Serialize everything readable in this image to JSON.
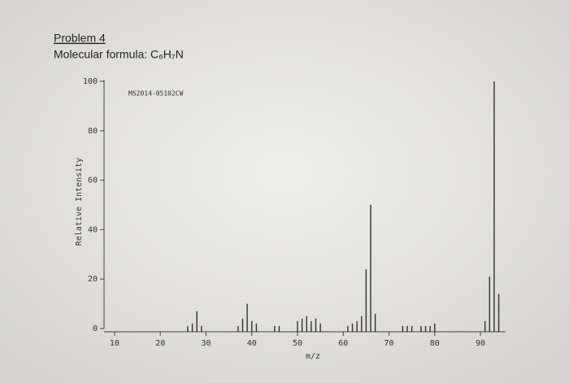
{
  "header": {
    "problem": "Problem 4",
    "formula": "Molecular formula: C₆H₇N"
  },
  "chart_data": {
    "type": "bar",
    "annotation": "MS2014-05102CW",
    "x_label": "m/z",
    "y_label": "Relative Intensity",
    "x": [
      26,
      27,
      28,
      29,
      37,
      38,
      39,
      40,
      41,
      45,
      46,
      50,
      51,
      52,
      53,
      54,
      55,
      61,
      62,
      63,
      64,
      65,
      66,
      67,
      73,
      74,
      75,
      77,
      78,
      79,
      80,
      91,
      92,
      93,
      94
    ],
    "values": [
      1,
      2,
      7,
      1,
      1,
      4,
      10,
      3,
      2,
      1,
      1,
      3,
      4,
      5,
      3,
      4,
      2,
      1,
      2,
      3,
      5,
      24,
      50,
      6,
      1,
      1,
      1,
      1,
      1,
      1,
      2,
      3,
      21,
      100,
      14
    ],
    "color": "#333333",
    "xlim": [
      7.7,
      95.5
    ],
    "ylim": [
      0,
      100
    ],
    "xticks": [
      10,
      20,
      30,
      40,
      50,
      60,
      70,
      80,
      90
    ],
    "yticks": [
      0,
      20,
      40,
      60,
      80,
      100
    ]
  }
}
